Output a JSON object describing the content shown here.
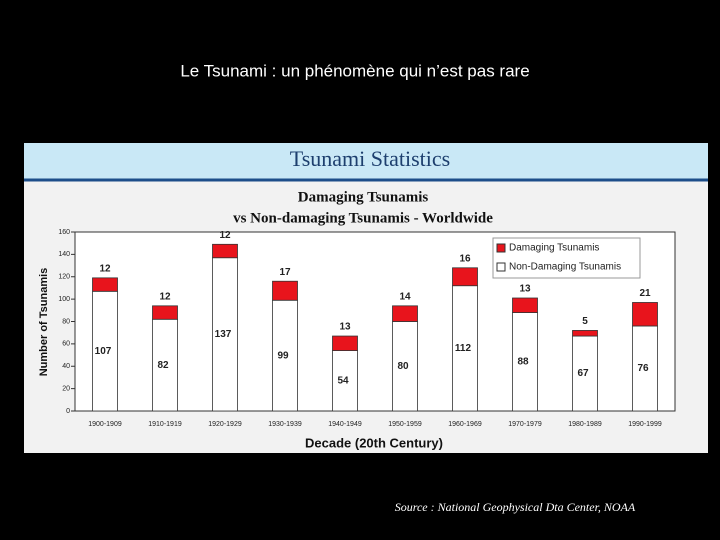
{
  "slide_title": "Le Tsunami : un phénomène qui n’est pas rare",
  "source": "Source : National Geophysical Dta Center, NOAA",
  "chart_data": {
    "type": "stacked-bar",
    "title": "Tsunami Statistics",
    "subtitle_lines": [
      "Damaging Tsunamis",
      "vs Non-damaging Tsunamis - Worldwide"
    ],
    "y_label": "Number of Tsunamis",
    "x_label": "Decade (20th Century)",
    "categories": [
      "1900-1909",
      "1910-1919",
      "1920-1929",
      "1930-1939",
      "1940-1949",
      "1950-1959",
      "1960-1969",
      "1970-1979",
      "1980-1989",
      "1990-1999"
    ],
    "series": [
      {
        "name": "Non-Damaging Tsunamis",
        "color": "#ffffff",
        "values": [
          107,
          82,
          137,
          99,
          54,
          80,
          112,
          88,
          67,
          76
        ]
      },
      {
        "name": "Damaging Tsunamis",
        "color": "#e8141c",
        "values": [
          12,
          12,
          12,
          17,
          13,
          14,
          16,
          13,
          5,
          21
        ]
      }
    ],
    "legend_order": [
      1,
      0
    ],
    "legend": "top-right",
    "ylim": [
      0,
      160
    ],
    "yticks": [
      0,
      20,
      40,
      60,
      80,
      100,
      120,
      140,
      160
    ]
  }
}
